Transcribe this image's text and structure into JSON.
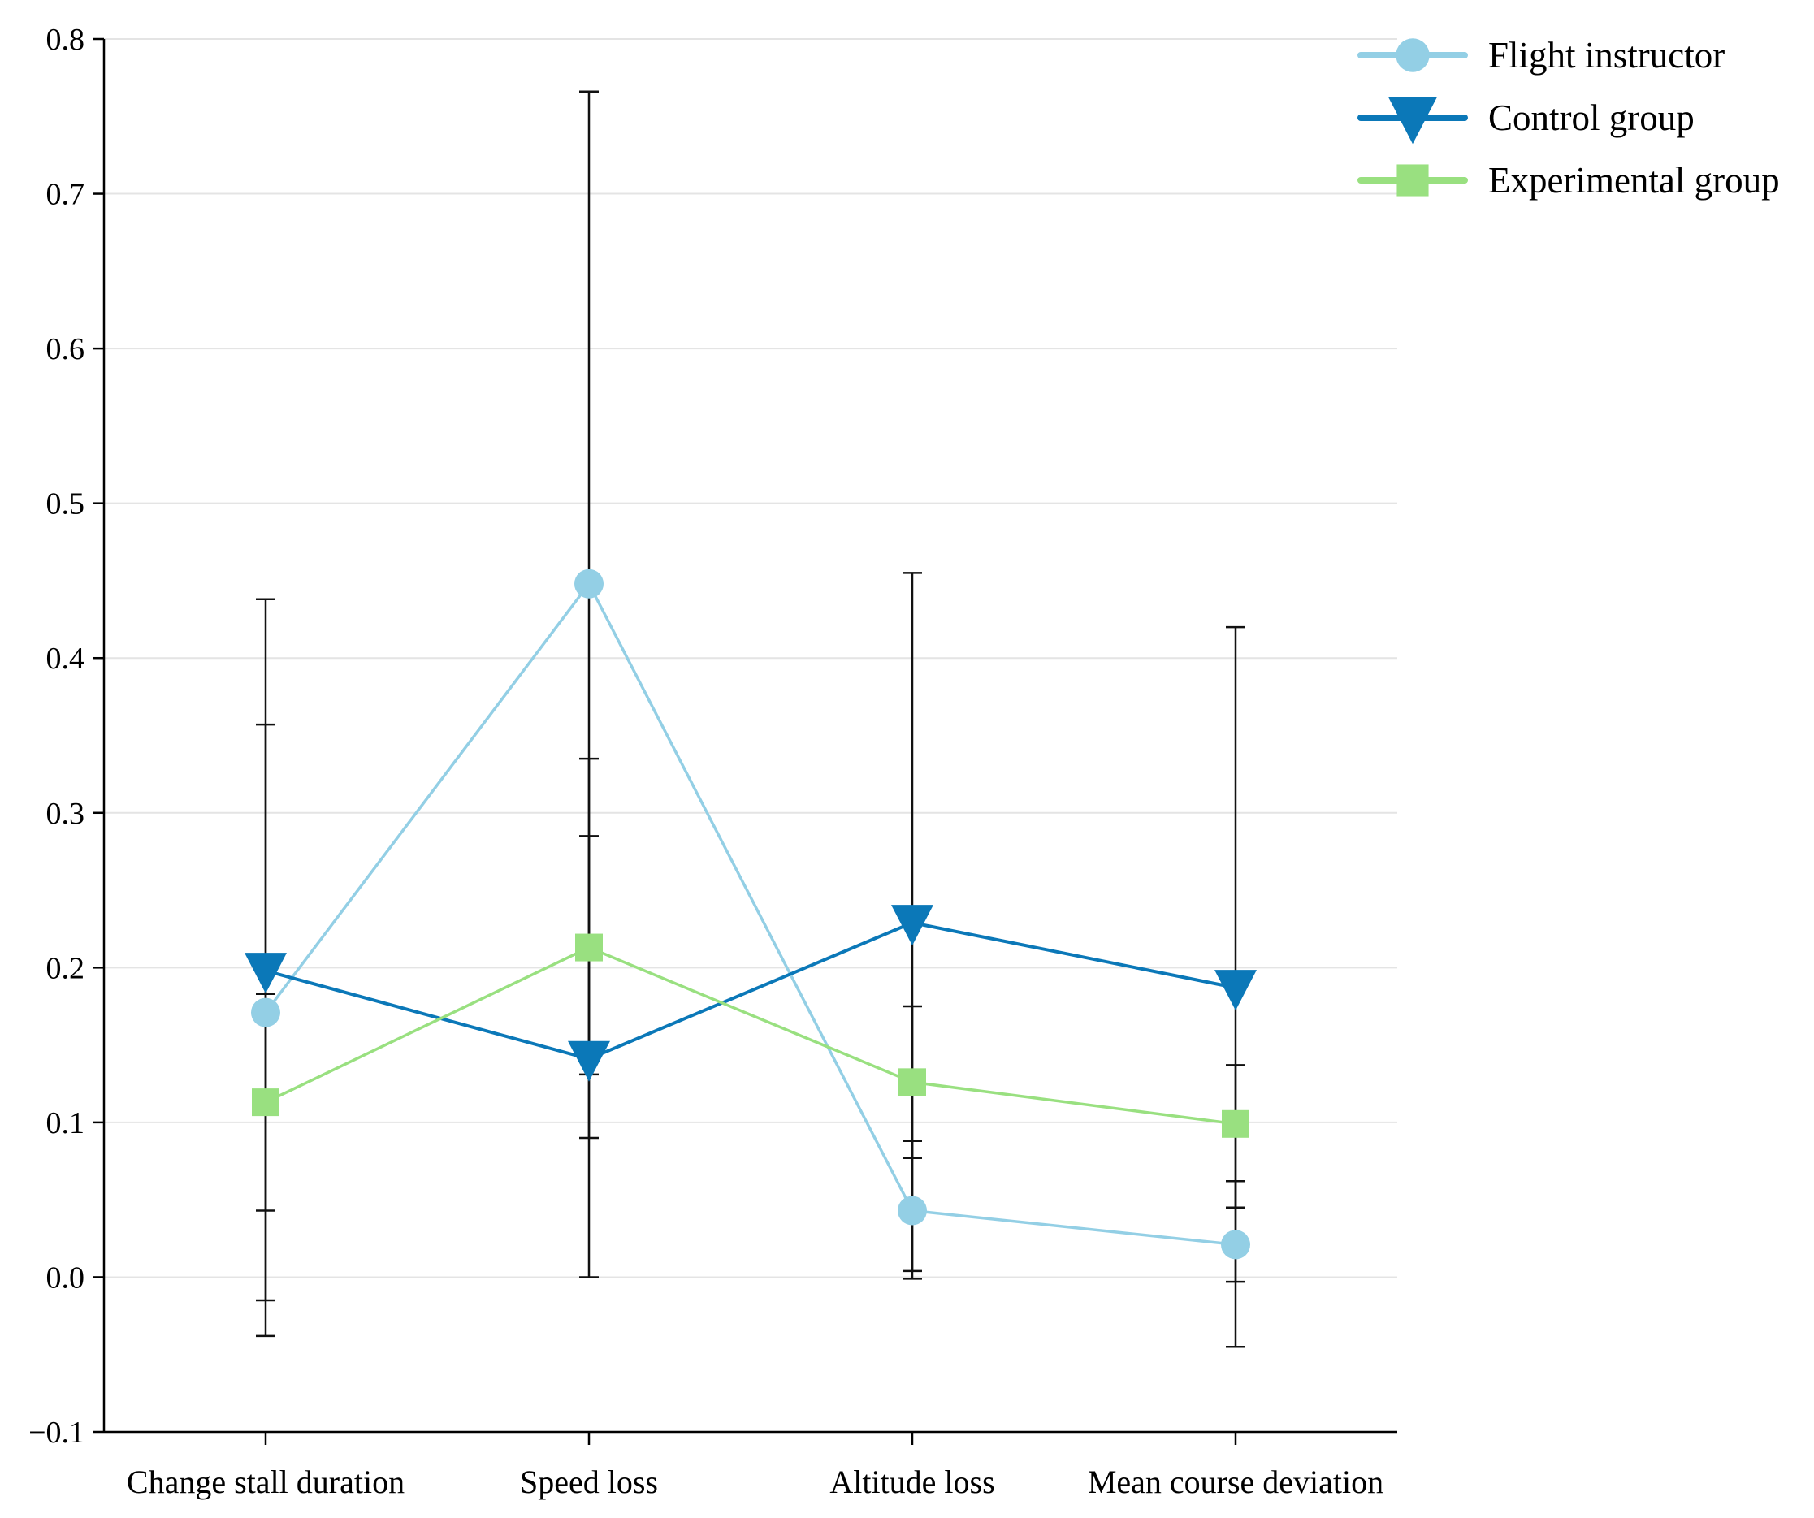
{
  "chart_data": {
    "type": "line",
    "title": "",
    "xlabel": "",
    "ylabel": "",
    "ylim": [
      -0.1,
      0.8
    ],
    "yticks": [
      -0.1,
      0.0,
      0.1,
      0.2,
      0.3,
      0.4,
      0.5,
      0.6,
      0.7,
      0.8
    ],
    "ytick_labels": [
      "−0.1",
      "0.0",
      "0.1",
      "0.2",
      "0.3",
      "0.4",
      "0.5",
      "0.6",
      "0.7",
      "0.8"
    ],
    "grid": true,
    "legend_position": "top-right",
    "categories": [
      "Change stall duration",
      "Speed loss",
      "Altitude loss",
      "Mean course deviation"
    ],
    "series": [
      {
        "name": "Flight instructor",
        "color": "#93cfe5",
        "marker": "circle",
        "values": [
          0.171,
          0.448,
          0.043,
          0.021
        ],
        "error_low": [
          -0.038,
          0.0,
          -0.001,
          -0.045
        ],
        "error_high": [
          0.183,
          0.766,
          0.088,
          0.137
        ]
      },
      {
        "name": "Control group",
        "color": "#0b78b8",
        "marker": "triangle-down",
        "values": [
          0.198,
          0.141,
          0.229,
          0.187
        ],
        "error_low": [
          -0.015,
          0.09,
          0.004,
          -0.003
        ],
        "error_high": [
          0.438,
          0.335,
          0.455,
          0.42
        ]
      },
      {
        "name": "Experimental group",
        "color": "#99e080",
        "marker": "square",
        "values": [
          0.113,
          0.213,
          0.126,
          0.099
        ],
        "error_low": [
          0.043,
          0.131,
          0.077,
          0.062
        ],
        "error_high": [
          0.357,
          0.285,
          0.175,
          0.045
        ]
      }
    ]
  }
}
